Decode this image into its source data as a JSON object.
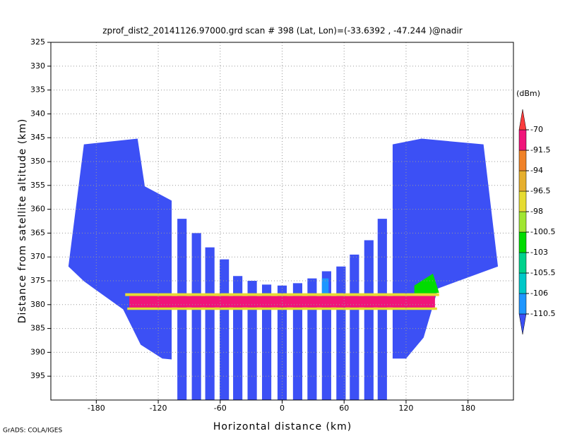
{
  "chart_data": {
    "type": "shaded",
    "title": "zprof_dist2_20141126.97000.grd  scan # 398  (Lat, Lon)=(-33.6392 , -47.244 )@nadir",
    "x_label": "Horizontal distance (km)",
    "y_label": "Distance from satellite altitude (km)",
    "colorbar_title": "(dBm)",
    "credit": "GrADS: COLA/IGES",
    "xlim": [
      -224,
      224
    ],
    "ylim": [
      400,
      325
    ],
    "xticks": [
      -180,
      -120,
      -60,
      0,
      60,
      120,
      180
    ],
    "yticks": [
      325,
      330,
      335,
      340,
      345,
      350,
      355,
      360,
      365,
      370,
      375,
      380,
      385,
      390,
      395
    ],
    "grid": true,
    "levels": [
      -110.5,
      -106,
      -105.5,
      -103,
      -100.5,
      -98,
      -96.5,
      -94,
      -91.5,
      -70
    ],
    "colors": [
      "#3c50f5",
      "#1e96ff",
      "#00c8c8",
      "#00d28c",
      "#00dc00",
      "#a0e632",
      "#e6dc32",
      "#e6af2d",
      "#f08228",
      "#f0147a",
      "#fa3c3c"
    ],
    "regions": [
      {
        "value": -115,
        "points": [
          [
            -207,
            372
          ],
          [
            -192,
            346.4
          ],
          [
            -140,
            345.2
          ],
          [
            -133,
            355.2
          ],
          [
            -107,
            358.2
          ],
          [
            -107,
            391.5
          ],
          [
            -116,
            391.3
          ],
          [
            -137,
            388.4
          ],
          [
            -154,
            381
          ],
          [
            -192,
            375.1
          ]
        ]
      },
      {
        "value": -115,
        "points": [
          [
            107,
            346.4
          ],
          [
            135,
            345.2
          ],
          [
            195,
            346.4
          ],
          [
            209,
            372
          ],
          [
            151,
            376.6
          ],
          [
            137,
            386.9
          ],
          [
            120,
            391.3
          ],
          [
            107,
            391.3
          ]
        ]
      },
      {
        "value": -115,
        "points": [
          [
            -101.5,
            362
          ],
          [
            -92.5,
            362
          ],
          [
            -92.5,
            400
          ],
          [
            -101.5,
            400
          ]
        ]
      },
      {
        "value": -115,
        "points": [
          [
            -87.5,
            365
          ],
          [
            -78.5,
            365
          ],
          [
            -78.5,
            400
          ],
          [
            -87.5,
            400
          ]
        ]
      },
      {
        "value": -115,
        "points": [
          [
            -74.5,
            368
          ],
          [
            -65.5,
            368
          ],
          [
            -65.5,
            400
          ],
          [
            -74.5,
            400
          ]
        ]
      },
      {
        "value": -115,
        "points": [
          [
            -60.5,
            370.5
          ],
          [
            -51.5,
            370.5
          ],
          [
            -51.5,
            400
          ],
          [
            -60.5,
            400
          ]
        ]
      },
      {
        "value": -115,
        "points": [
          [
            -47.5,
            374
          ],
          [
            -38.5,
            374
          ],
          [
            -38.5,
            400
          ],
          [
            -47.5,
            400
          ]
        ]
      },
      {
        "value": -115,
        "points": [
          [
            -33.5,
            375
          ],
          [
            -24.5,
            375
          ],
          [
            -24.5,
            400
          ],
          [
            -33.5,
            400
          ]
        ]
      },
      {
        "value": -115,
        "points": [
          [
            -19.5,
            375.8
          ],
          [
            -10.5,
            375.8
          ],
          [
            -10.5,
            400
          ],
          [
            -19.5,
            400
          ]
        ]
      },
      {
        "value": -115,
        "points": [
          [
            -4.5,
            376
          ],
          [
            4.5,
            376
          ],
          [
            4.5,
            400
          ],
          [
            -4.5,
            400
          ]
        ]
      },
      {
        "value": -115,
        "points": [
          [
            10.5,
            375.5
          ],
          [
            19.5,
            375.5
          ],
          [
            19.5,
            400
          ],
          [
            10.5,
            400
          ]
        ]
      },
      {
        "value": -115,
        "points": [
          [
            24.5,
            374.5
          ],
          [
            33.5,
            374.5
          ],
          [
            33.5,
            400
          ],
          [
            24.5,
            400
          ]
        ]
      },
      {
        "value": -115,
        "points": [
          [
            38.5,
            373
          ],
          [
            47.5,
            373
          ],
          [
            47.5,
            400
          ],
          [
            38.5,
            400
          ]
        ]
      },
      {
        "value": -115,
        "points": [
          [
            52.5,
            372
          ],
          [
            61.5,
            372
          ],
          [
            61.5,
            400
          ],
          [
            52.5,
            400
          ]
        ]
      },
      {
        "value": -115,
        "points": [
          [
            65.5,
            369.5
          ],
          [
            74.5,
            369.5
          ],
          [
            74.5,
            400
          ],
          [
            65.5,
            400
          ]
        ]
      },
      {
        "value": -115,
        "points": [
          [
            79.5,
            366.5
          ],
          [
            88.5,
            366.5
          ],
          [
            88.5,
            400
          ],
          [
            79.5,
            400
          ]
        ]
      },
      {
        "value": -115,
        "points": [
          [
            92.5,
            362
          ],
          [
            101.5,
            362
          ],
          [
            101.5,
            400
          ],
          [
            92.5,
            400
          ]
        ]
      },
      {
        "value": -107,
        "points": [
          [
            38.5,
            374.5
          ],
          [
            45,
            374.5
          ],
          [
            45,
            377.8
          ],
          [
            38.5,
            377.8
          ]
        ]
      },
      {
        "value": -102,
        "points": [
          [
            128,
            376
          ],
          [
            146,
            373.5
          ],
          [
            152,
            377.5
          ],
          [
            128,
            378
          ]
        ]
      },
      {
        "value": -97,
        "points": [
          [
            -152,
            377.6
          ],
          [
            152,
            377.6
          ],
          [
            152,
            378.2
          ],
          [
            -152,
            378.2
          ]
        ]
      },
      {
        "value": -80,
        "points": [
          [
            -148,
            378.2
          ],
          [
            148,
            378.2
          ],
          [
            148,
            380.6
          ],
          [
            -148,
            380.6
          ]
        ]
      },
      {
        "value": -97,
        "points": [
          [
            -150,
            380.6
          ],
          [
            150,
            380.6
          ],
          [
            150,
            381.1
          ],
          [
            -150,
            381.1
          ]
        ]
      }
    ]
  }
}
